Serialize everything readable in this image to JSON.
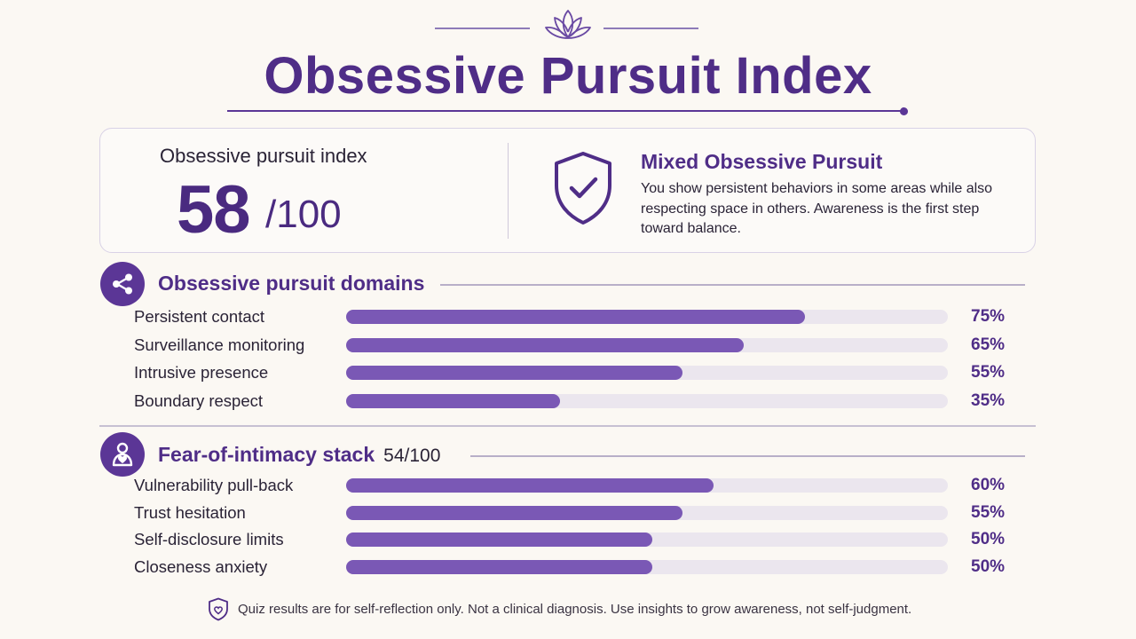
{
  "header": {
    "title": "Obsessive Pursuit Index"
  },
  "score_card": {
    "label": "Obsessive pursuit index",
    "value": "58",
    "denominator": "/100",
    "verdict_title": "Mixed Obsessive Pursuit",
    "verdict_text": "You show persistent behaviors in some areas while also respecting space in others. Awareness is the first step toward balance."
  },
  "domains": {
    "title": "Obsessive pursuit domains",
    "icon": "share-icon",
    "rows": [
      {
        "label": "Persistent contact",
        "pct_text": "75%",
        "value": 75
      },
      {
        "label": "Surveillance monitoring",
        "pct_text": "65%",
        "value": 65
      },
      {
        "label": "Intrusive presence",
        "pct_text": "55%",
        "value": 55
      },
      {
        "label": "Boundary respect",
        "pct_text": "35%",
        "value": 35
      }
    ]
  },
  "intimacy": {
    "title": "Fear-of-intimacy stack",
    "score": "54/100",
    "icon": "person-heart-icon",
    "rows": [
      {
        "label": "Vulnerability pull-back",
        "pct_text": "60%",
        "value": 60
      },
      {
        "label": "Trust hesitation",
        "pct_text": "55%",
        "value": 55
      },
      {
        "label": "Self-disclosure limits",
        "pct_text": "50%",
        "value": 50
      },
      {
        "label": "Closeness anxiety",
        "pct_text": "50%",
        "value": 50
      }
    ]
  },
  "footer": {
    "text": "Quiz results are for self-reflection only. Not a clinical diagnosis. Use insights to grow awareness, not self-judgment."
  },
  "colors": {
    "accent": "#4f2d87",
    "bar_fill": "#7a58b5",
    "bar_track": "#ebe6ee",
    "background": "#fbf8f3"
  }
}
